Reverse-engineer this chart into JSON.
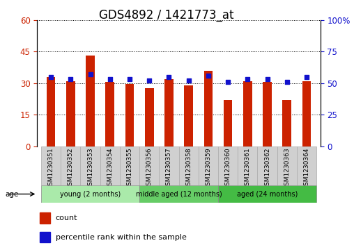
{
  "title": "GDS4892 / 1421773_at",
  "samples": [
    "GSM1230351",
    "GSM1230352",
    "GSM1230353",
    "GSM1230354",
    "GSM1230355",
    "GSM1230356",
    "GSM1230357",
    "GSM1230358",
    "GSM1230359",
    "GSM1230360",
    "GSM1230361",
    "GSM1230362",
    "GSM1230363",
    "GSM1230364"
  ],
  "counts": [
    33,
    31,
    43,
    30.5,
    29.5,
    27.5,
    32,
    29,
    36,
    22,
    31,
    30.5,
    22,
    31
  ],
  "percentiles": [
    55,
    53,
    57,
    53,
    53,
    52,
    55,
    52,
    56,
    51,
    53,
    53,
    51,
    55
  ],
  "bar_color": "#cc2200",
  "dot_color": "#1111cc",
  "ylim_left": [
    0,
    60
  ],
  "ylim_right": [
    0,
    100
  ],
  "yticks_left": [
    0,
    15,
    30,
    45,
    60
  ],
  "yticks_right": [
    0,
    25,
    50,
    75,
    100
  ],
  "ytick_labels_left": [
    "0",
    "15",
    "30",
    "45",
    "60"
  ],
  "ytick_labels_right": [
    "0",
    "25",
    "50",
    "75",
    "100%"
  ],
  "groups": [
    {
      "label": "young (2 months)",
      "start": 0,
      "end": 5,
      "color": "#aaeaaa"
    },
    {
      "label": "middle aged (12 months)",
      "start": 5,
      "end": 9,
      "color": "#66cc66"
    },
    {
      "label": "aged (24 months)",
      "start": 9,
      "end": 14,
      "color": "#44bb44"
    }
  ],
  "sample_box_color": "#d0d0d0",
  "age_label": "age",
  "legend_count_label": "count",
  "legend_percentile_label": "percentile rank within the sample",
  "background_color": "#ffffff",
  "plot_bg_color": "#ffffff",
  "grid_color": "#000000",
  "left_tick_color": "#cc2200",
  "right_tick_color": "#1111cc",
  "title_fontsize": 12,
  "tick_fontsize": 8.5,
  "bar_width": 0.45
}
